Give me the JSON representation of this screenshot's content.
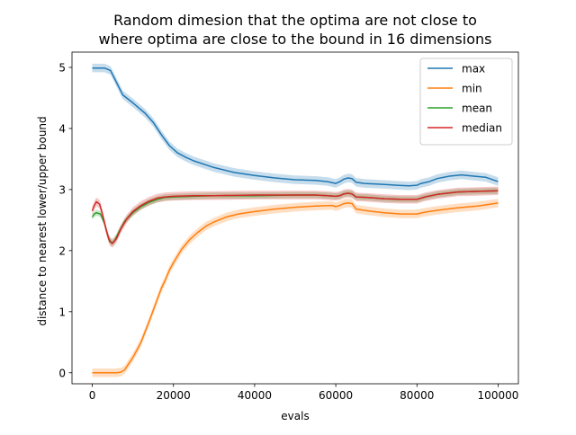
{
  "chart_data": {
    "type": "line",
    "title_lines": [
      "Random dimesion that the optima are not close to",
      "where optima are close to the bound in 16 dimensions"
    ],
    "xlabel": "evals",
    "ylabel": "distance to nearest lower/upper bound",
    "xlim": [
      -5000,
      105000
    ],
    "ylim": [
      -0.18,
      5.25
    ],
    "xticks": [
      0,
      20000,
      40000,
      60000,
      80000,
      100000
    ],
    "yticks": [
      0,
      1,
      2,
      3,
      4,
      5
    ],
    "grid": false,
    "legend_position": "top-right",
    "series": [
      {
        "name": "max",
        "color": "#1f77b4",
        "band": 0.07,
        "points": [
          [
            0,
            4.99
          ],
          [
            3000,
            4.99
          ],
          [
            4500,
            4.95
          ],
          [
            6000,
            4.75
          ],
          [
            7500,
            4.55
          ],
          [
            10000,
            4.42
          ],
          [
            13000,
            4.25
          ],
          [
            15000,
            4.1
          ],
          [
            17000,
            3.9
          ],
          [
            19000,
            3.72
          ],
          [
            21000,
            3.6
          ],
          [
            23000,
            3.53
          ],
          [
            25000,
            3.47
          ],
          [
            30000,
            3.36
          ],
          [
            35000,
            3.28
          ],
          [
            40000,
            3.23
          ],
          [
            45000,
            3.19
          ],
          [
            50000,
            3.16
          ],
          [
            55000,
            3.15
          ],
          [
            58000,
            3.13
          ],
          [
            60000,
            3.1
          ],
          [
            61000,
            3.13
          ],
          [
            62000,
            3.17
          ],
          [
            63000,
            3.19
          ],
          [
            64000,
            3.18
          ],
          [
            65000,
            3.12
          ],
          [
            67000,
            3.1
          ],
          [
            70000,
            3.09
          ],
          [
            73000,
            3.08
          ],
          [
            75000,
            3.07
          ],
          [
            78000,
            3.06
          ],
          [
            80000,
            3.07
          ],
          [
            81000,
            3.1
          ],
          [
            83000,
            3.13
          ],
          [
            85000,
            3.18
          ],
          [
            88000,
            3.22
          ],
          [
            91000,
            3.24
          ],
          [
            94000,
            3.22
          ],
          [
            97000,
            3.2
          ],
          [
            100000,
            3.13
          ]
        ]
      },
      {
        "name": "min",
        "color": "#ff7f0e",
        "band": 0.07,
        "points": [
          [
            0,
            0.0
          ],
          [
            6000,
            0.0
          ],
          [
            7000,
            0.01
          ],
          [
            8000,
            0.05
          ],
          [
            9000,
            0.15
          ],
          [
            10000,
            0.25
          ],
          [
            11000,
            0.37
          ],
          [
            12000,
            0.5
          ],
          [
            13000,
            0.67
          ],
          [
            14000,
            0.84
          ],
          [
            15000,
            1.02
          ],
          [
            16000,
            1.2
          ],
          [
            17000,
            1.38
          ],
          [
            18000,
            1.52
          ],
          [
            19000,
            1.68
          ],
          [
            20000,
            1.8
          ],
          [
            22000,
            2.02
          ],
          [
            24000,
            2.18
          ],
          [
            26000,
            2.3
          ],
          [
            28000,
            2.4
          ],
          [
            30000,
            2.47
          ],
          [
            33000,
            2.55
          ],
          [
            36000,
            2.6
          ],
          [
            40000,
            2.64
          ],
          [
            45000,
            2.68
          ],
          [
            50000,
            2.71
          ],
          [
            55000,
            2.73
          ],
          [
            59000,
            2.74
          ],
          [
            60000,
            2.72
          ],
          [
            61000,
            2.74
          ],
          [
            62000,
            2.77
          ],
          [
            63000,
            2.78
          ],
          [
            64000,
            2.77
          ],
          [
            65000,
            2.68
          ],
          [
            68000,
            2.65
          ],
          [
            72000,
            2.62
          ],
          [
            76000,
            2.6
          ],
          [
            80000,
            2.6
          ],
          [
            82000,
            2.63
          ],
          [
            85000,
            2.66
          ],
          [
            90000,
            2.7
          ],
          [
            95000,
            2.73
          ],
          [
            100000,
            2.78
          ]
        ]
      },
      {
        "name": "mean",
        "color": "#2ca02c",
        "band": 0.05,
        "points": [
          [
            0,
            2.55
          ],
          [
            500,
            2.6
          ],
          [
            1000,
            2.62
          ],
          [
            2000,
            2.6
          ],
          [
            3000,
            2.45
          ],
          [
            4000,
            2.2
          ],
          [
            4800,
            2.12
          ],
          [
            5500,
            2.16
          ],
          [
            6500,
            2.3
          ],
          [
            8000,
            2.48
          ],
          [
            10000,
            2.62
          ],
          [
            12000,
            2.72
          ],
          [
            14000,
            2.79
          ],
          [
            16000,
            2.84
          ],
          [
            18000,
            2.87
          ],
          [
            20000,
            2.88
          ],
          [
            25000,
            2.89
          ],
          [
            30000,
            2.9
          ],
          [
            40000,
            2.9
          ],
          [
            50000,
            2.91
          ],
          [
            55000,
            2.91
          ],
          [
            58000,
            2.9
          ],
          [
            60000,
            2.89
          ],
          [
            61000,
            2.9
          ],
          [
            62000,
            2.93
          ],
          [
            63000,
            2.94
          ],
          [
            64000,
            2.93
          ],
          [
            65000,
            2.88
          ],
          [
            68000,
            2.87
          ],
          [
            72000,
            2.85
          ],
          [
            76000,
            2.84
          ],
          [
            80000,
            2.84
          ],
          [
            82000,
            2.88
          ],
          [
            85000,
            2.92
          ],
          [
            90000,
            2.96
          ],
          [
            95000,
            2.97
          ],
          [
            100000,
            2.98
          ]
        ]
      },
      {
        "name": "median",
        "color": "#d62728",
        "band": 0.07,
        "points": [
          [
            0,
            2.65
          ],
          [
            500,
            2.74
          ],
          [
            1000,
            2.8
          ],
          [
            1800,
            2.76
          ],
          [
            2500,
            2.6
          ],
          [
            3500,
            2.32
          ],
          [
            4300,
            2.15
          ],
          [
            5000,
            2.12
          ],
          [
            6000,
            2.2
          ],
          [
            7000,
            2.35
          ],
          [
            8500,
            2.52
          ],
          [
            10000,
            2.64
          ],
          [
            12000,
            2.74
          ],
          [
            14000,
            2.81
          ],
          [
            16000,
            2.86
          ],
          [
            18000,
            2.88
          ],
          [
            20000,
            2.89
          ],
          [
            25000,
            2.9
          ],
          [
            30000,
            2.9
          ],
          [
            40000,
            2.91
          ],
          [
            50000,
            2.91
          ],
          [
            55000,
            2.91
          ],
          [
            58000,
            2.9
          ],
          [
            60000,
            2.89
          ],
          [
            61000,
            2.9
          ],
          [
            62000,
            2.93
          ],
          [
            63000,
            2.94
          ],
          [
            64000,
            2.93
          ],
          [
            65000,
            2.88
          ],
          [
            68000,
            2.87
          ],
          [
            72000,
            2.85
          ],
          [
            76000,
            2.84
          ],
          [
            80000,
            2.84
          ],
          [
            82000,
            2.88
          ],
          [
            85000,
            2.92
          ],
          [
            90000,
            2.96
          ],
          [
            95000,
            2.97
          ],
          [
            100000,
            2.98
          ]
        ]
      }
    ]
  }
}
